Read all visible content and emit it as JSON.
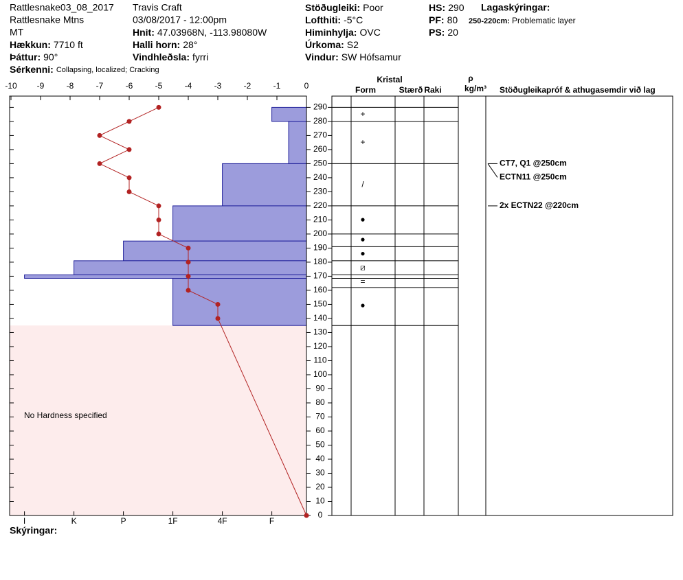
{
  "header": {
    "pit": "Rattlesnake03_08_2017",
    "range": "Rattlesnake Mtns",
    "state": "MT",
    "elevation": {
      "label": "Hækkun:",
      "value": "7710 ft"
    },
    "aspect": {
      "label": "Þáttur:",
      "value": "90°"
    },
    "features": {
      "label": "Sérkenni:",
      "value": "Collapsing, localized;  Cracking"
    },
    "observer": "Travis  Craft",
    "datetime": "03/08/2017 - 12:00pm",
    "coords": {
      "label": "Hnit:",
      "value": "47.03968N, -113.98080W"
    },
    "slope": {
      "label": "Halli horn:",
      "value": "28°"
    },
    "wind_loading": {
      "label": "Vindhleðsla:",
      "value": "fyrri"
    },
    "stability": {
      "label": "Stöðugleiki:",
      "value": "Poor"
    },
    "air_temp": {
      "label": "Lofthiti:",
      "value": "-5°C"
    },
    "sky": {
      "label": "Himinhylja:",
      "value": "OVC"
    },
    "precip": {
      "label": "Úrkoma:",
      "value": "S2"
    },
    "wind": {
      "label": "Vindur:",
      "value": "SW Hófsamur"
    },
    "hs": {
      "label": "HS:",
      "value": "290"
    },
    "pf": {
      "label": "PF:",
      "value": "80"
    },
    "ps": {
      "label": "PS:",
      "value": "20"
    },
    "layer_notes": {
      "title": "Lagaskýringar:",
      "range": "250-220cm:",
      "note": "Problematic layer"
    },
    "legend": "Skýringar:"
  },
  "chart_data": {
    "type": "snowpit",
    "xlim": [
      -10,
      0
    ],
    "xticks": [
      -10,
      -9,
      -8,
      -7,
      -6,
      -5,
      -4,
      -3,
      -2,
      -1,
      0
    ],
    "ylim": [
      0,
      298
    ],
    "yticks": [
      0,
      10,
      20,
      30,
      40,
      50,
      60,
      70,
      80,
      90,
      100,
      110,
      120,
      130,
      140,
      150,
      160,
      170,
      180,
      190,
      200,
      210,
      220,
      230,
      240,
      250,
      260,
      270,
      280,
      290
    ],
    "hardness_lim": [
      6.3,
      0.3
    ],
    "hardness_ticks": [
      {
        "value": 6,
        "label": "I"
      },
      {
        "value": 5,
        "label": "K"
      },
      {
        "value": 4,
        "label": "P"
      },
      {
        "value": 3,
        "label": "1F"
      },
      {
        "value": 2,
        "label": "4F"
      },
      {
        "value": 1,
        "label": "F"
      }
    ],
    "hardness_color": "#9c9cdc",
    "temperature": {
      "color": "#b22222",
      "depth": [
        290,
        280,
        270,
        260,
        250,
        240,
        230,
        220,
        210,
        200,
        190,
        180,
        170,
        160,
        150,
        140,
        0
      ],
      "values": [
        -5,
        -6,
        -7,
        -6,
        -7,
        -6,
        -6,
        -5,
        -5,
        -5,
        -4,
        -4,
        -4,
        -4,
        -3,
        -3,
        0
      ]
    },
    "layers": [
      {
        "top": 290,
        "bottom": 280,
        "hardness": 1
      },
      {
        "top": 280,
        "bottom": 250,
        "hardness": 0.66
      },
      {
        "top": 250,
        "bottom": 220,
        "hardness": 2
      },
      {
        "top": 220,
        "bottom": 195,
        "hardness": 3
      },
      {
        "top": 195,
        "bottom": 181,
        "hardness": 4
      },
      {
        "top": 181,
        "bottom": 171,
        "hardness": 5
      },
      {
        "top": 171,
        "bottom": 168.5,
        "hardness": 6
      },
      {
        "top": 168.5,
        "bottom": 135,
        "hardness": 3
      }
    ],
    "no_hardness": "No Hardness specified",
    "table_header": {
      "crystal": "Kristal",
      "form": "Form",
      "size": "Stærð",
      "moisture": "Raki",
      "rho": "ρ",
      "density_unit": "kg/m³",
      "comments": "Stöðugleikapróf & athugasemdir við lag"
    },
    "table_lines": [
      290,
      280,
      250,
      220,
      200,
      191,
      181,
      171,
      168.5,
      162,
      135
    ],
    "crystals": [
      {
        "depth": 285,
        "form": "+"
      },
      {
        "depth": 265,
        "form": "+"
      },
      {
        "depth": 235,
        "form": "/"
      },
      {
        "depth": 210,
        "form": "●"
      },
      {
        "depth": 196,
        "form": "●"
      },
      {
        "depth": 186,
        "form": "●"
      },
      {
        "depth": 176,
        "form": "⧄"
      },
      {
        "depth": 166,
        "form": "="
      },
      {
        "depth": 149,
        "form": "●"
      }
    ],
    "tests": [
      {
        "depth": 250,
        "text": "CT7, Q1 @250cm"
      },
      {
        "depth": 250,
        "text": "ECTN11 @250cm"
      },
      {
        "depth": 220,
        "text": "2x ECTN22 @220cm"
      }
    ]
  }
}
